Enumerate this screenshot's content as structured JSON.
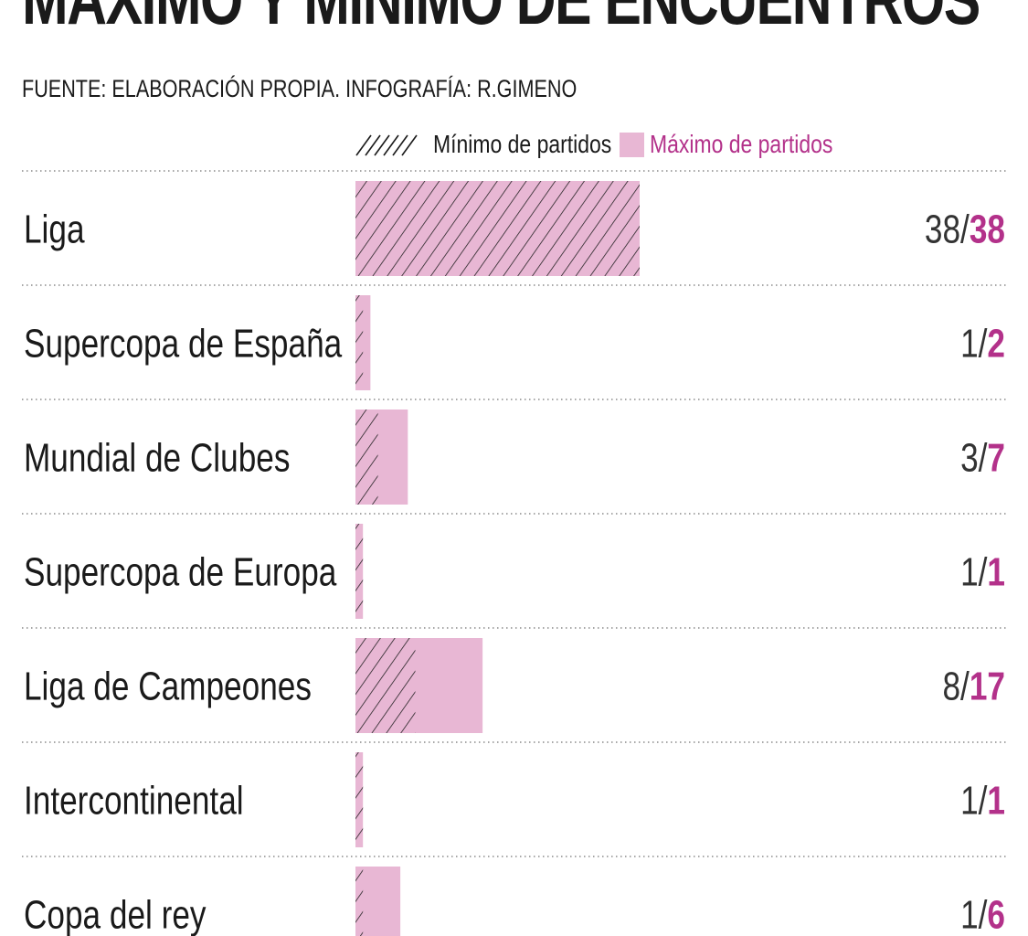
{
  "header": {
    "title": "MÁXIMO Y MÍNIMO DE ENCUENTROS",
    "source": "FUENTE: ELABORACIÓN PROPIA. INFOGRAFÍA: R.GIMENO"
  },
  "legend": {
    "min_label": "Mínimo de partidos",
    "max_label": "Máximo de partidos"
  },
  "colors": {
    "max_fill": "#e8b7d4",
    "max_text": "#b3318a",
    "hatch": "#1a1a1a"
  },
  "chart_data": {
    "type": "bar",
    "orientation": "horizontal",
    "title": "MÁXIMO Y MÍNIMO DE ENCUENTROS",
    "categories": [
      "Liga",
      "Supercopa de España",
      "Mundial de Clubes",
      "Supercopa de Europa",
      "Liga de Campeones",
      "Intercontinental",
      "Copa del rey"
    ],
    "series": [
      {
        "name": "Mínimo de partidos",
        "values": [
          38,
          1,
          3,
          1,
          8,
          1,
          1
        ]
      },
      {
        "name": "Máximo de partidos",
        "values": [
          38,
          2,
          7,
          1,
          17,
          1,
          6
        ]
      }
    ],
    "value_labels": [
      {
        "min": "38/",
        "max": "38"
      },
      {
        "min": "1/",
        "max": "2"
      },
      {
        "min": "3/",
        "max": "7"
      },
      {
        "min": "1/",
        "max": "1"
      },
      {
        "min": "8/",
        "max": "17"
      },
      {
        "min": "1/",
        "max": "1"
      },
      {
        "min": "1/",
        "max": "6"
      }
    ],
    "xlim": [
      0,
      38
    ],
    "grid": false,
    "legend_position": "top"
  }
}
